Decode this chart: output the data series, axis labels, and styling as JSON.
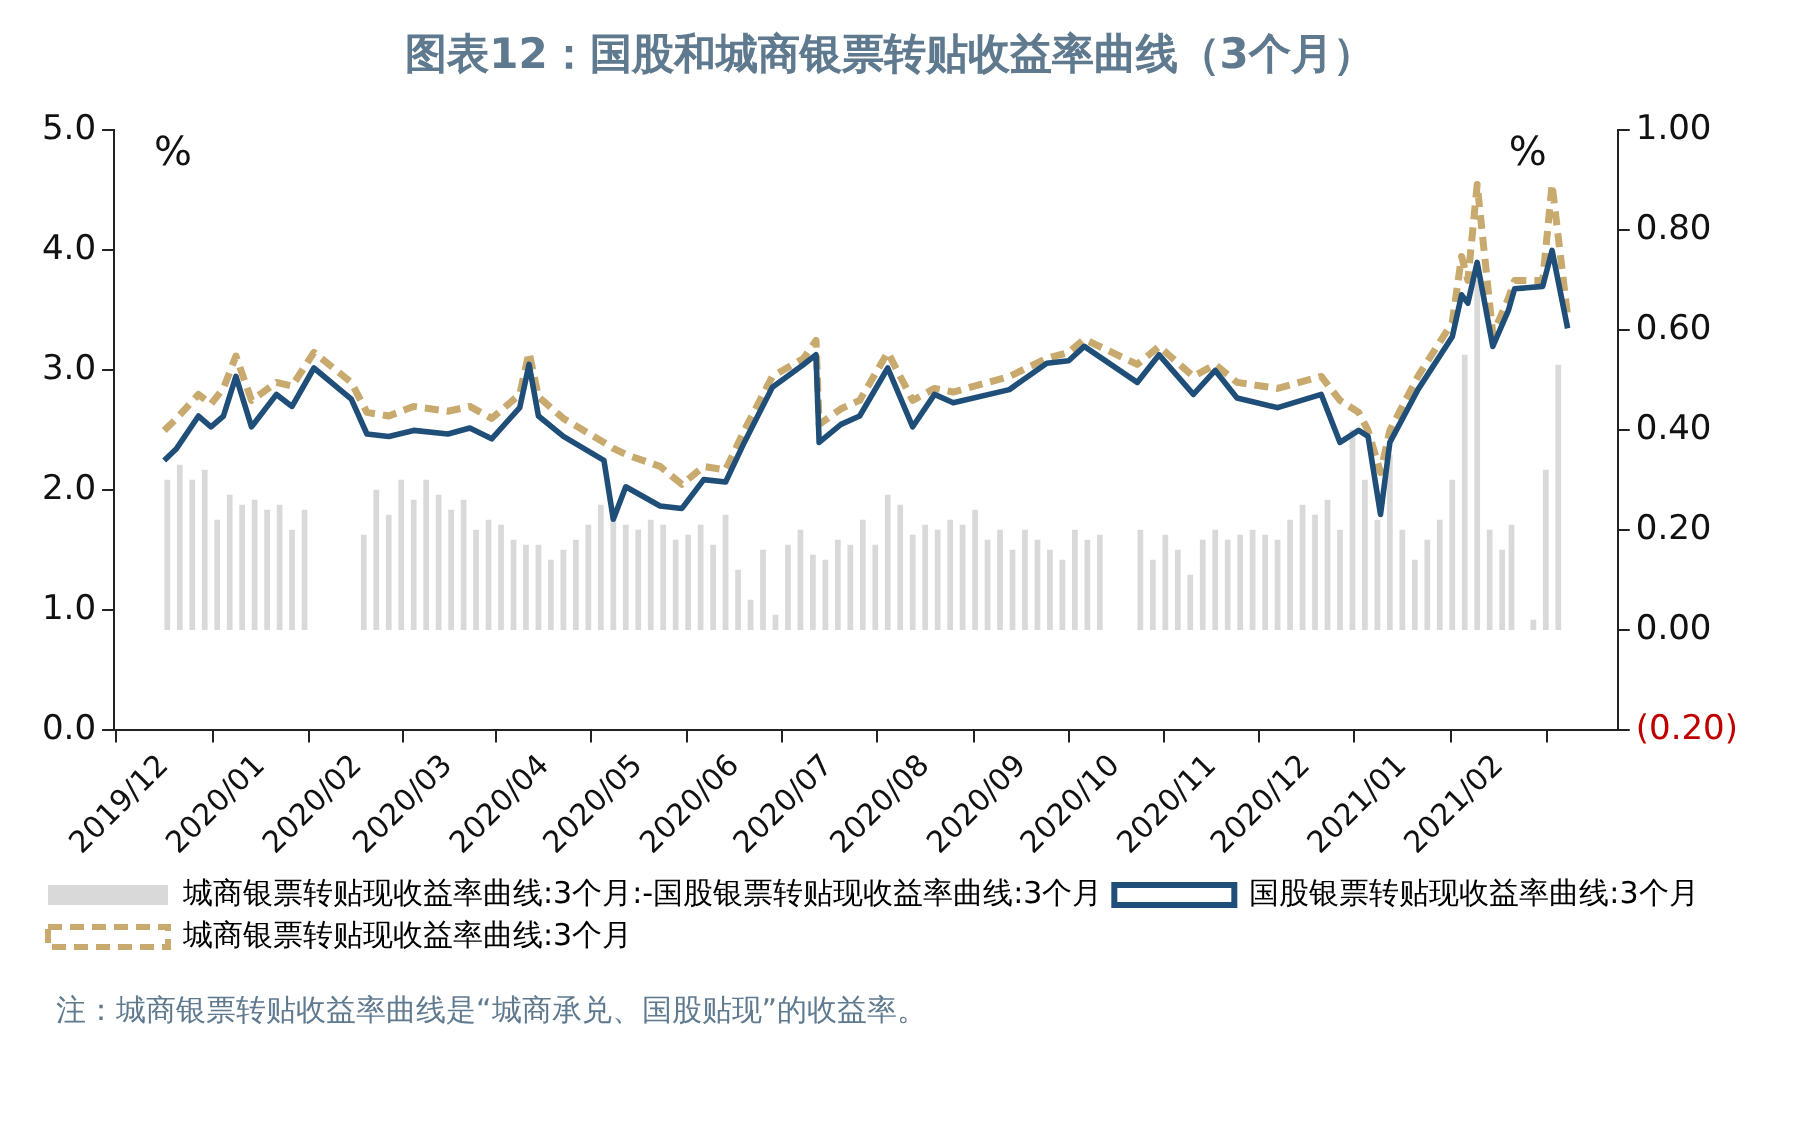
{
  "chart_data": {
    "type": "line",
    "title": "图表12：国股和城商银票转贴收益率曲线（3个月）",
    "ylabel": "%",
    "y2label": "%",
    "annotations": [
      "注：城商银票转贴收益率曲线是“城商承兑、国股贴现”的收益率。"
    ],
    "x": [
      "2019-12-01",
      "2019-12-05",
      "2019-12-12",
      "2019-12-16",
      "2019-12-20",
      "2019-12-24",
      "2019-12-29",
      "2020-01-06",
      "2020-01-11",
      "2020-01-18",
      "2020-01-30",
      "2020-02-04",
      "2020-02-11",
      "2020-02-19",
      "2020-03-01",
      "2020-03-08",
      "2020-03-15",
      "2020-03-24",
      "2020-03-27",
      "2020-03-30",
      "2020-04-07",
      "2020-04-20",
      "2020-04-23",
      "2020-04-27",
      "2020-05-08",
      "2020-05-15",
      "2020-05-22",
      "2020-05-29",
      "2020-06-04",
      "2020-06-13",
      "2020-06-23",
      "2020-06-27",
      "2020-06-28",
      "2020-07-05",
      "2020-07-11",
      "2020-07-20",
      "2020-07-28",
      "2020-08-04",
      "2020-08-10",
      "2020-08-28",
      "2020-09-09",
      "2020-09-16",
      "2020-09-21",
      "2020-10-08",
      "2020-10-15",
      "2020-10-26",
      "2020-11-02",
      "2020-11-09",
      "2020-11-22",
      "2020-12-06",
      "2020-12-12",
      "2020-12-18",
      "2020-12-21",
      "2020-12-25",
      "2020-12-28",
      "2021-01-06",
      "2021-01-17",
      "2021-01-20",
      "2021-01-22",
      "2021-01-25",
      "2021-01-30",
      "2021-02-04",
      "2021-02-06",
      "2021-02-15",
      "2021-02-18",
      "2021-02-23"
    ],
    "series": [
      {
        "name": "城商银票转贴现收益率曲线:3个月:-国股银票转贴现收益率曲线:3个月",
        "type": "bar",
        "axis": "y2",
        "color": "#d9d9d9",
        "x": [
          "2019-12-02",
          "2019-12-06",
          "2019-12-10",
          "2019-12-14",
          "2019-12-18",
          "2019-12-22",
          "2019-12-26",
          "2019-12-30",
          "2020-01-03",
          "2020-01-07",
          "2020-01-11",
          "2020-01-15",
          "2020-02-03",
          "2020-02-07",
          "2020-02-11",
          "2020-02-15",
          "2020-02-19",
          "2020-02-23",
          "2020-02-27",
          "2020-03-02",
          "2020-03-06",
          "2020-03-10",
          "2020-03-14",
          "2020-03-18",
          "2020-03-22",
          "2020-03-26",
          "2020-03-30",
          "2020-04-03",
          "2020-04-07",
          "2020-04-11",
          "2020-04-15",
          "2020-04-19",
          "2020-04-23",
          "2020-04-27",
          "2020-05-01",
          "2020-05-05",
          "2020-05-09",
          "2020-05-13",
          "2020-05-17",
          "2020-05-21",
          "2020-05-25",
          "2020-05-29",
          "2020-06-02",
          "2020-06-06",
          "2020-06-10",
          "2020-06-14",
          "2020-06-18",
          "2020-06-22",
          "2020-06-26",
          "2020-06-30",
          "2020-07-04",
          "2020-07-08",
          "2020-07-12",
          "2020-07-16",
          "2020-07-20",
          "2020-07-24",
          "2020-07-28",
          "2020-08-01",
          "2020-08-05",
          "2020-08-09",
          "2020-08-13",
          "2020-08-17",
          "2020-08-21",
          "2020-08-25",
          "2020-08-29",
          "2020-09-02",
          "2020-09-06",
          "2020-09-10",
          "2020-09-14",
          "2020-09-18",
          "2020-09-22",
          "2020-09-26",
          "2020-10-09",
          "2020-10-13",
          "2020-10-17",
          "2020-10-21",
          "2020-10-25",
          "2020-10-29",
          "2020-11-02",
          "2020-11-06",
          "2020-11-10",
          "2020-11-14",
          "2020-11-18",
          "2020-11-22",
          "2020-11-26",
          "2020-11-30",
          "2020-12-04",
          "2020-12-08",
          "2020-12-12",
          "2020-12-16",
          "2020-12-20",
          "2020-12-24",
          "2020-12-28",
          "2021-01-01",
          "2021-01-05",
          "2021-01-09",
          "2021-01-13",
          "2021-01-17",
          "2021-01-21",
          "2021-01-25",
          "2021-01-29",
          "2021-02-02",
          "2021-02-05",
          "2021-02-12",
          "2021-02-16",
          "2021-02-20"
        ],
        "values": [
          0.3,
          0.33,
          0.3,
          0.32,
          0.22,
          0.27,
          0.25,
          0.26,
          0.24,
          0.25,
          0.2,
          0.24,
          0.19,
          0.28,
          0.23,
          0.3,
          0.26,
          0.3,
          0.27,
          0.24,
          0.26,
          0.2,
          0.22,
          0.21,
          0.18,
          0.17,
          0.17,
          0.14,
          0.16,
          0.18,
          0.21,
          0.25,
          0.22,
          0.21,
          0.2,
          0.22,
          0.21,
          0.18,
          0.19,
          0.21,
          0.17,
          0.23,
          0.12,
          0.06,
          0.16,
          0.03,
          0.17,
          0.2,
          0.15,
          0.14,
          0.18,
          0.17,
          0.22,
          0.17,
          0.27,
          0.25,
          0.19,
          0.21,
          0.2,
          0.22,
          0.21,
          0.24,
          0.18,
          0.2,
          0.16,
          0.2,
          0.18,
          0.16,
          0.14,
          0.2,
          0.18,
          0.19,
          0.2,
          0.14,
          0.19,
          0.16,
          0.11,
          0.18,
          0.2,
          0.18,
          0.19,
          0.2,
          0.19,
          0.18,
          0.22,
          0.25,
          0.23,
          0.26,
          0.2,
          0.4,
          0.3,
          0.22,
          0.35,
          0.2,
          0.14,
          0.18,
          0.22,
          0.3,
          0.55,
          0.7,
          0.2,
          0.16,
          0.21,
          0.02,
          0.32,
          0.53
        ]
      },
      {
        "name": "国股银票转贴现收益率曲线:3个月",
        "color": "#1f4e79",
        "line_style": "solid",
        "values": [
          2.25,
          2.35,
          2.62,
          2.53,
          2.62,
          2.95,
          2.53,
          2.8,
          2.7,
          3.02,
          2.76,
          2.47,
          2.45,
          2.5,
          2.47,
          2.52,
          2.43,
          2.69,
          3.05,
          2.62,
          2.45,
          2.25,
          1.76,
          2.03,
          1.87,
          1.85,
          2.09,
          2.07,
          2.4,
          2.86,
          3.05,
          3.13,
          2.4,
          2.55,
          2.62,
          3.02,
          2.53,
          2.8,
          2.73,
          2.84,
          3.06,
          3.08,
          3.2,
          2.9,
          3.13,
          2.8,
          3.0,
          2.77,
          2.69,
          2.8,
          2.4,
          2.5,
          2.45,
          1.8,
          2.4,
          2.84,
          3.28,
          3.63,
          3.56,
          3.9,
          3.2,
          3.5,
          3.68,
          3.7,
          4.0,
          3.35
        ]
      },
      {
        "name": "城商银票转贴现收益率曲线:3个月",
        "color": "#c8a96e",
        "line_style": "dashed",
        "values": [
          2.5,
          2.6,
          2.8,
          2.72,
          2.85,
          3.12,
          2.75,
          2.9,
          2.87,
          3.15,
          2.9,
          2.65,
          2.62,
          2.7,
          2.66,
          2.7,
          2.6,
          2.8,
          3.15,
          2.78,
          2.6,
          2.4,
          2.35,
          2.3,
          2.2,
          2.05,
          2.2,
          2.17,
          2.5,
          2.95,
          3.1,
          3.25,
          2.55,
          2.68,
          2.75,
          3.15,
          2.75,
          2.85,
          2.82,
          2.95,
          3.1,
          3.15,
          3.26,
          3.05,
          3.2,
          2.95,
          3.05,
          2.9,
          2.85,
          2.95,
          2.75,
          2.65,
          2.5,
          2.15,
          2.5,
          2.95,
          3.4,
          3.95,
          3.75,
          4.55,
          3.3,
          3.6,
          3.75,
          3.75,
          4.55,
          3.45
        ]
      }
    ],
    "xlim": [
      "2019-12-01",
      "2021-02-23"
    ],
    "xticks": [
      {
        "value": "2019-12",
        "label": "2019/12"
      },
      {
        "value": "2020-01",
        "label": "2020/01"
      },
      {
        "value": "2020-02",
        "label": "2020/02"
      },
      {
        "value": "2020-03",
        "label": "2020/03"
      },
      {
        "value": "2020-04",
        "label": "2020/04"
      },
      {
        "value": "2020-05",
        "label": "2020/05"
      },
      {
        "value": "2020-06",
        "label": "2020/06"
      },
      {
        "value": "2020-07",
        "label": "2020/07"
      },
      {
        "value": "2020-08",
        "label": "2020/08"
      },
      {
        "value": "2020-09",
        "label": "2020/09"
      },
      {
        "value": "2020-10",
        "label": "2020/10"
      },
      {
        "value": "2020-11",
        "label": "2020/11"
      },
      {
        "value": "2020-12",
        "label": "2020/12"
      },
      {
        "value": "2021-01",
        "label": "2021/01"
      },
      {
        "value": "2021-02",
        "label": "2021/02"
      }
    ],
    "ylim": [
      0,
      5
    ],
    "yticks": [
      {
        "value": 0,
        "label": "0.0"
      },
      {
        "value": 1,
        "label": "1.0"
      },
      {
        "value": 2,
        "label": "2.0"
      },
      {
        "value": 3,
        "label": "3.0"
      },
      {
        "value": 4,
        "label": "4.0"
      },
      {
        "value": 5,
        "label": "5.0"
      }
    ],
    "y2lim": [
      -0.2,
      1
    ],
    "y2ticks": [
      {
        "value": -0.2,
        "label": "(0.20)"
      },
      {
        "value": 0,
        "label": "0.00"
      },
      {
        "value": 0.2,
        "label": "0.20"
      },
      {
        "value": 0.4,
        "label": "0.40"
      },
      {
        "value": 0.6,
        "label": "0.60"
      },
      {
        "value": 0.8,
        "label": "0.80"
      },
      {
        "value": 1,
        "label": "1.00"
      }
    ],
    "grid": false,
    "legend": "bottom",
    "marker": "none"
  }
}
